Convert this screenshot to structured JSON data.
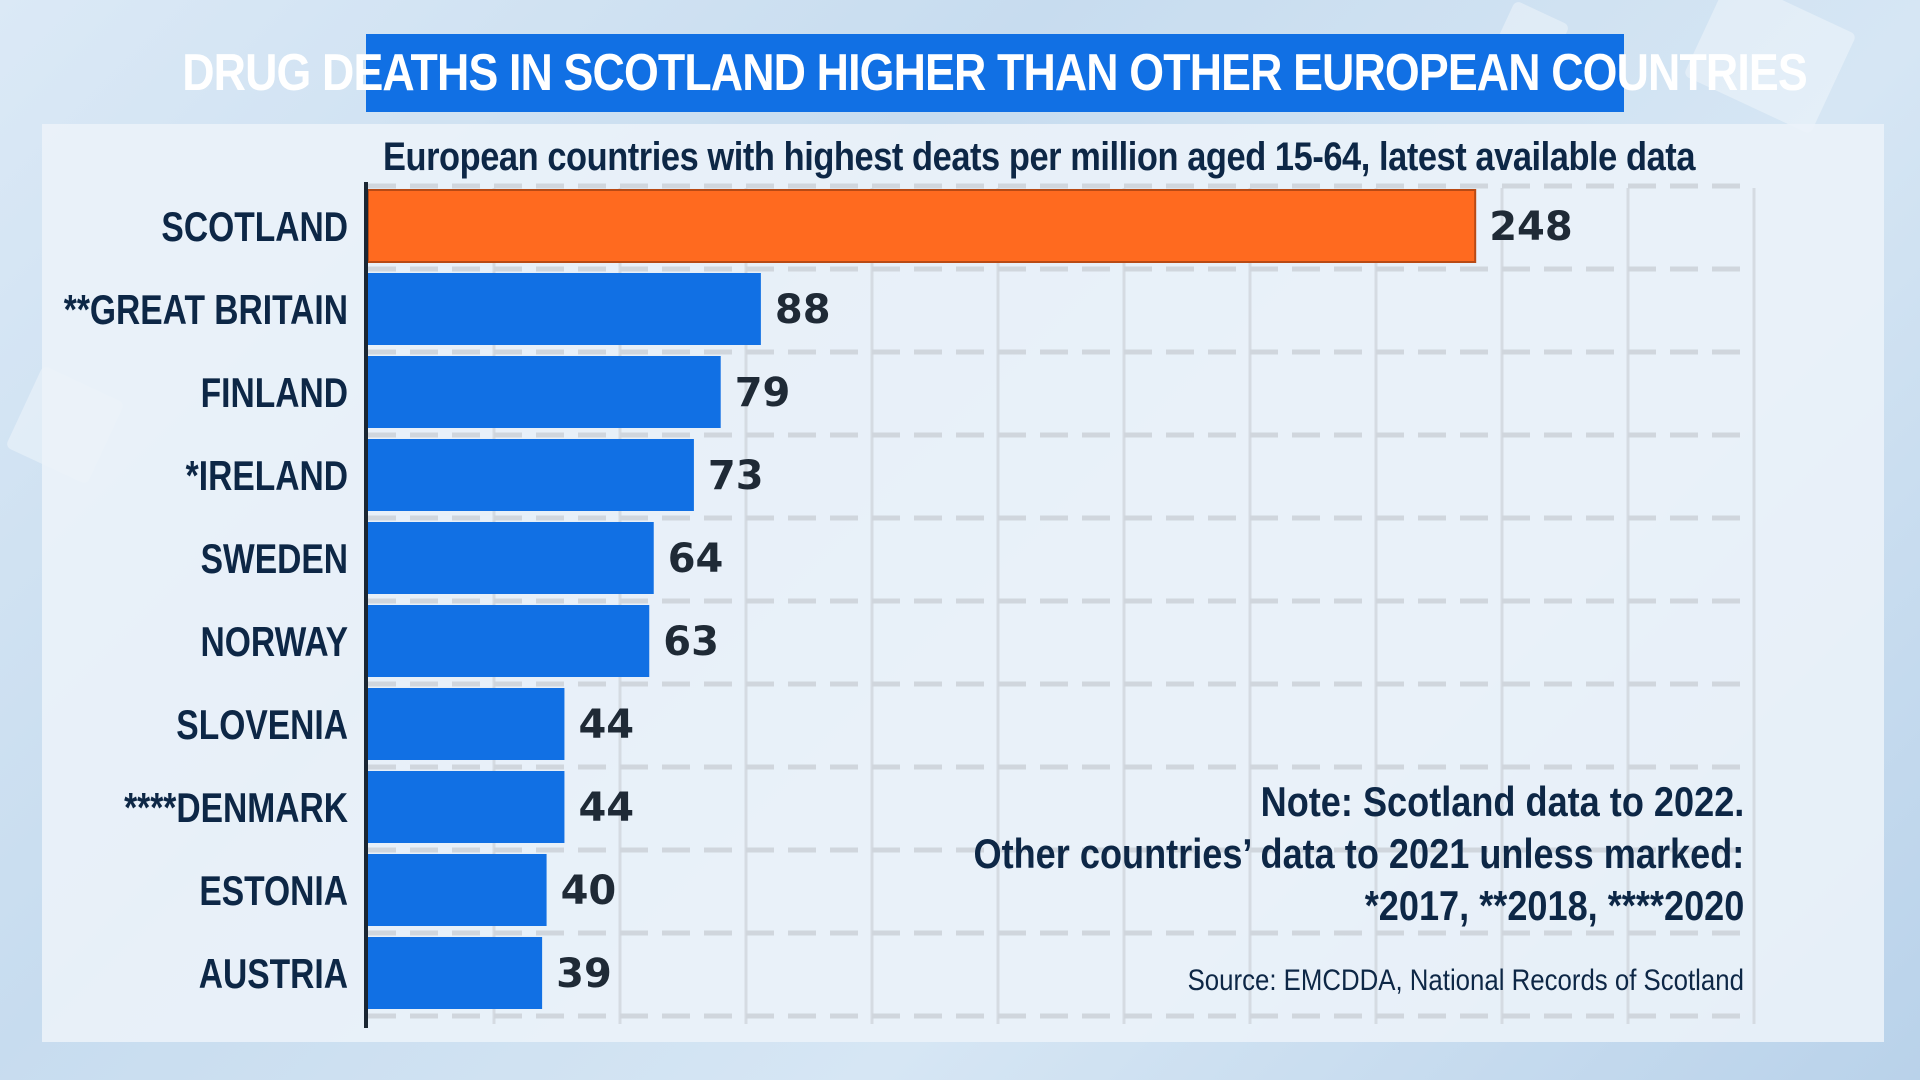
{
  "title": "DRUG DEATHS IN SCOTLAND HIGHER THAN OTHER EUROPEAN COUNTRIES",
  "colors": {
    "highlight": "#ff6a1f",
    "bar": "#1170e4",
    "banner": "#1170e4",
    "text": "#0d2746"
  },
  "chart_data": {
    "type": "bar",
    "orientation": "horizontal",
    "subtitle": "European countries with highest deats per million aged 15-64, latest available data",
    "categories": [
      "SCOTLAND",
      "**GREAT BRITAIN",
      "FINLAND",
      "*IRELAND",
      "SWEDEN",
      "NORWAY",
      "SLOVENIA",
      "****DENMARK",
      "ESTONIA",
      "AUSTRIA"
    ],
    "values": [
      248,
      88,
      79,
      73,
      64,
      63,
      44,
      44,
      40,
      39
    ],
    "value_labels": [
      "248",
      "88",
      "79",
      "73",
      "64",
      "63",
      "44",
      "44",
      "40",
      "39"
    ],
    "highlight_category": "SCOTLAND",
    "xlim": [
      0,
      310
    ],
    "grid": true,
    "note_lines": [
      "Note: Scotland data to 2022.",
      "Other countries’ data to 2021 unless marked:",
      "*2017, **2018, ****2020"
    ],
    "source": "Source: EMCDDA, National Records of Scotland"
  }
}
